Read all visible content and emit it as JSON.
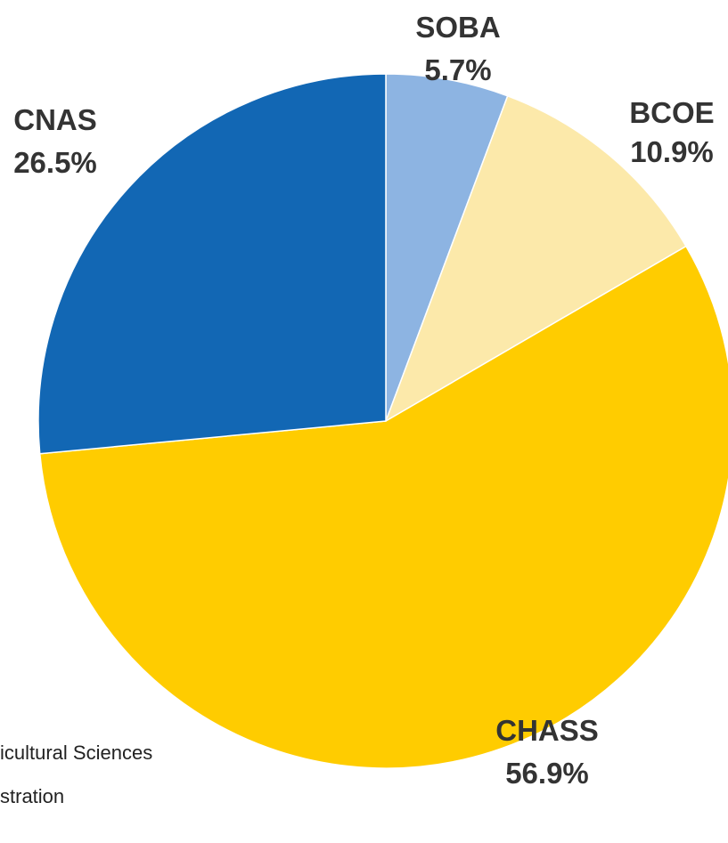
{
  "chart_data": {
    "type": "pie",
    "title": "",
    "start_angle_deg": 0,
    "direction": "clockwise",
    "slices": [
      {
        "name": "SOBA",
        "value": 5.7,
        "label": "5.7%",
        "color": "#8db4e2"
      },
      {
        "name": "BCOE",
        "value": 10.9,
        "label": "10.9%",
        "color": "#fce9aa"
      },
      {
        "name": "CHASS",
        "value": 56.9,
        "label": "56.9%",
        "color": "#ffcc00"
      },
      {
        "name": "CNAS",
        "value": 26.5,
        "label": "26.5%",
        "color": "#1267b4"
      }
    ]
  },
  "footnotes": [
    "icultural Sciences",
    "stration"
  ]
}
